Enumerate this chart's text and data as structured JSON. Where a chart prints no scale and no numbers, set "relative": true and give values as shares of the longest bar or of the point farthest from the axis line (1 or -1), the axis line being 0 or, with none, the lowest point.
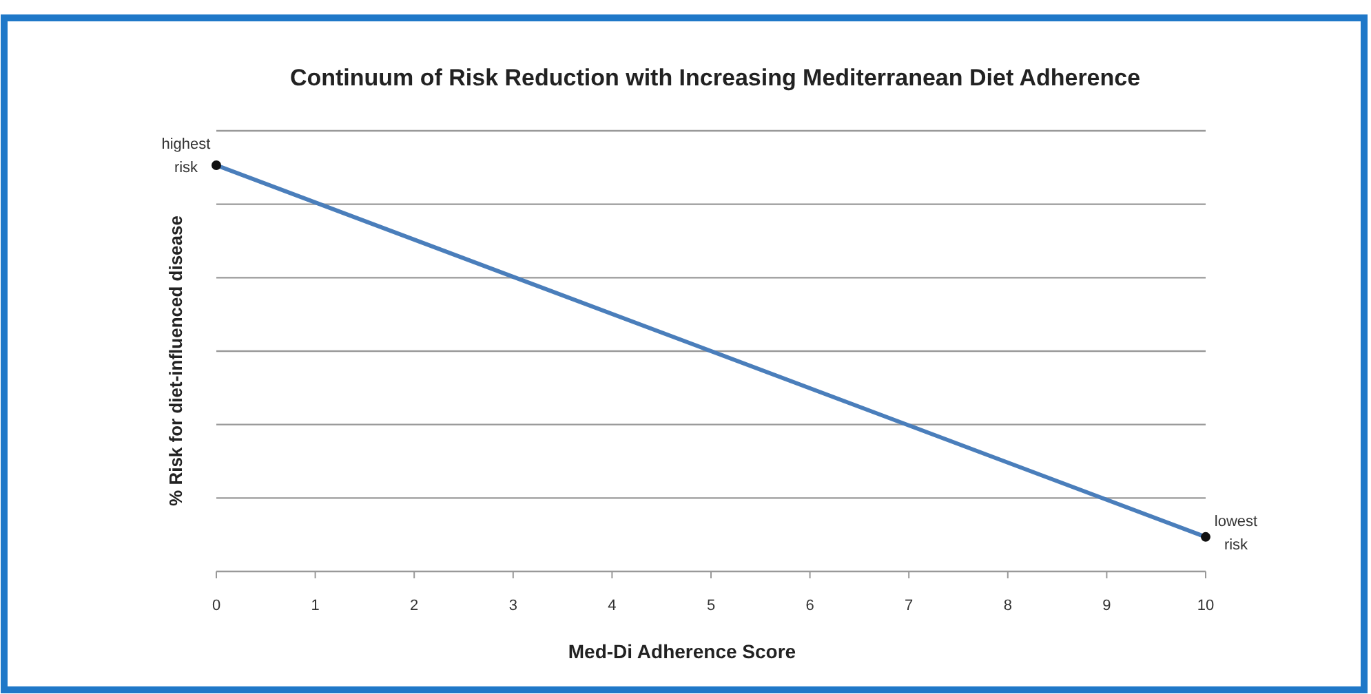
{
  "chart_data": {
    "type": "line",
    "title": "Continuum of Risk Reduction with Increasing Mediterranean Diet Adherence",
    "xlabel": "Med-Di Adherence Score",
    "ylabel": "% Risk for diet-influenced disease",
    "relative": true,
    "x": [
      0,
      10
    ],
    "xlim": [
      0,
      10
    ],
    "xticks": [
      0,
      1,
      2,
      3,
      4,
      5,
      6,
      7,
      8,
      9,
      10
    ],
    "series": [
      {
        "color": "#4a7ebb",
        "values": [
          1,
          0.085
        ]
      }
    ],
    "marker": "circle",
    "grid": "y",
    "annotations": [
      {
        "text": "highest risk",
        "x": 0,
        "y": 1
      },
      {
        "text": "lowest risk",
        "x": 10,
        "y": 0.085
      }
    ]
  }
}
